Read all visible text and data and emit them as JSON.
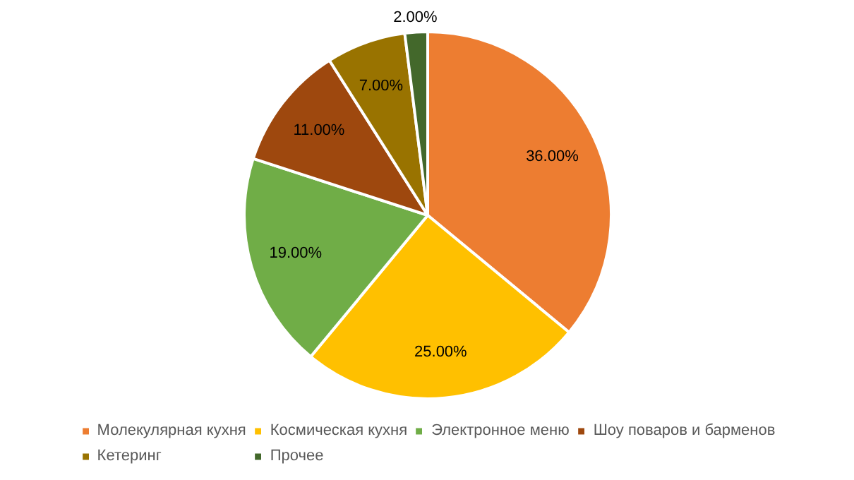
{
  "chart_data": {
    "type": "pie",
    "categories": [
      "Молекулярная кухня",
      "Космическая кухня",
      "Электронное меню",
      "Шоу поваров и барменов",
      "Кетеринг",
      "Прочее"
    ],
    "values": [
      36,
      25,
      19,
      11,
      7,
      2
    ],
    "colors": [
      "#ed7d31",
      "#ffc000",
      "#70ad47",
      "#9e480e",
      "#997300",
      "#43682b"
    ],
    "value_labels": [
      "36.00%",
      "25.00%",
      "19.00%",
      "11.00%",
      "7.00%",
      "2.00%"
    ],
    "legend": "bottom"
  }
}
